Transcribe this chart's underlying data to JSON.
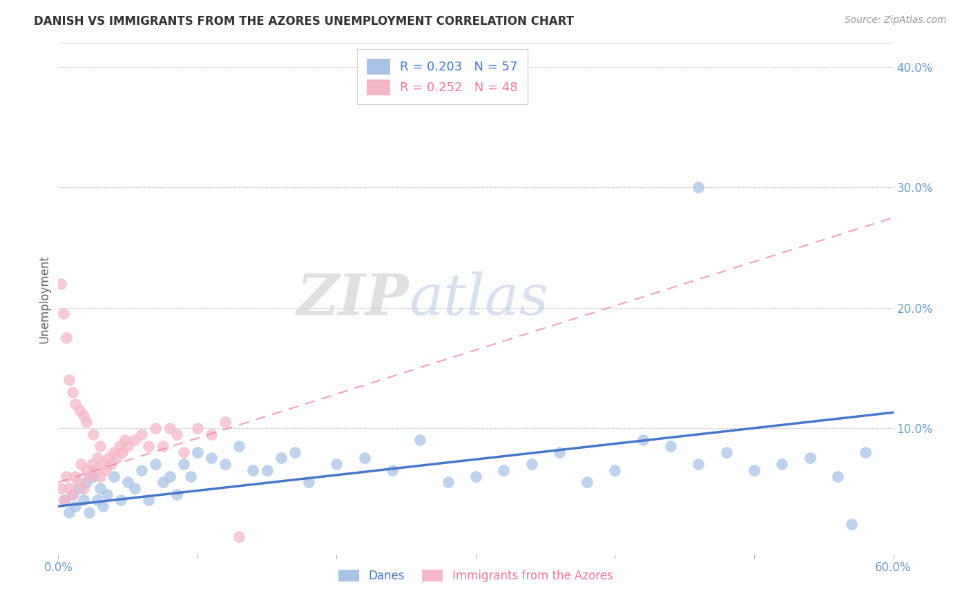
{
  "title": "DANISH VS IMMIGRANTS FROM THE AZORES UNEMPLOYMENT CORRELATION CHART",
  "source": "Source: ZipAtlas.com",
  "ylabel": "Unemployment",
  "watermark_zip": "ZIP",
  "watermark_atlas": "atlas",
  "x_min": 0.0,
  "x_max": 0.6,
  "y_min": -0.005,
  "y_max": 0.42,
  "legend_r_blue": "R = 0.203",
  "legend_n_blue": "N = 57",
  "legend_r_pink": "R = 0.252",
  "legend_n_pink": "N = 48",
  "danes_color": "#A8C4E8",
  "azores_color": "#F5B8C8",
  "danes_label": "Danes",
  "azores_label": "Immigrants from the Azores",
  "trendline_blue_color": "#4477CC",
  "trendline_pink_color": "#EE7799",
  "background_color": "#ffffff",
  "grid_color": "#CCCCCC",
  "title_color": "#333333",
  "axis_color": "#6699CC",
  "blue_trend_x0": 0.0,
  "blue_trend_y0": 0.035,
  "blue_trend_x1": 0.6,
  "blue_trend_y1": 0.113,
  "pink_trend_x0": 0.0,
  "pink_trend_y0": 0.055,
  "pink_trend_x1": 0.6,
  "pink_trend_y1": 0.275,
  "danes_x": [
    0.005,
    0.008,
    0.01,
    0.012,
    0.015,
    0.018,
    0.02,
    0.022,
    0.025,
    0.028,
    0.03,
    0.032,
    0.035,
    0.04,
    0.045,
    0.05,
    0.055,
    0.06,
    0.065,
    0.07,
    0.075,
    0.08,
    0.085,
    0.09,
    0.095,
    0.1,
    0.11,
    0.12,
    0.13,
    0.14,
    0.15,
    0.16,
    0.17,
    0.18,
    0.2,
    0.22,
    0.24,
    0.26,
    0.28,
    0.3,
    0.32,
    0.34,
    0.36,
    0.38,
    0.4,
    0.42,
    0.44,
    0.46,
    0.48,
    0.5,
    0.52,
    0.54,
    0.56,
    0.58,
    0.295,
    0.46,
    0.57
  ],
  "danes_y": [
    0.04,
    0.03,
    0.045,
    0.035,
    0.05,
    0.04,
    0.055,
    0.03,
    0.06,
    0.04,
    0.05,
    0.035,
    0.045,
    0.06,
    0.04,
    0.055,
    0.05,
    0.065,
    0.04,
    0.07,
    0.055,
    0.06,
    0.045,
    0.07,
    0.06,
    0.08,
    0.075,
    0.07,
    0.085,
    0.065,
    0.065,
    0.075,
    0.08,
    0.055,
    0.07,
    0.075,
    0.065,
    0.09,
    0.055,
    0.06,
    0.065,
    0.07,
    0.08,
    0.055,
    0.065,
    0.09,
    0.085,
    0.07,
    0.08,
    0.065,
    0.07,
    0.075,
    0.06,
    0.08,
    0.38,
    0.3,
    0.02
  ],
  "azores_x": [
    0.002,
    0.004,
    0.006,
    0.008,
    0.01,
    0.012,
    0.014,
    0.016,
    0.018,
    0.02,
    0.022,
    0.024,
    0.026,
    0.028,
    0.03,
    0.032,
    0.034,
    0.036,
    0.038,
    0.04,
    0.042,
    0.044,
    0.046,
    0.048,
    0.05,
    0.055,
    0.06,
    0.065,
    0.07,
    0.075,
    0.08,
    0.085,
    0.09,
    0.1,
    0.11,
    0.12,
    0.002,
    0.004,
    0.006,
    0.008,
    0.01,
    0.012,
    0.015,
    0.018,
    0.02,
    0.025,
    0.03,
    0.13
  ],
  "azores_y": [
    0.05,
    0.04,
    0.06,
    0.05,
    0.045,
    0.06,
    0.055,
    0.07,
    0.05,
    0.065,
    0.06,
    0.07,
    0.065,
    0.075,
    0.06,
    0.07,
    0.065,
    0.075,
    0.07,
    0.08,
    0.075,
    0.085,
    0.08,
    0.09,
    0.085,
    0.09,
    0.095,
    0.085,
    0.1,
    0.085,
    0.1,
    0.095,
    0.08,
    0.1,
    0.095,
    0.105,
    0.22,
    0.195,
    0.175,
    0.14,
    0.13,
    0.12,
    0.115,
    0.11,
    0.105,
    0.095,
    0.085,
    0.01
  ]
}
